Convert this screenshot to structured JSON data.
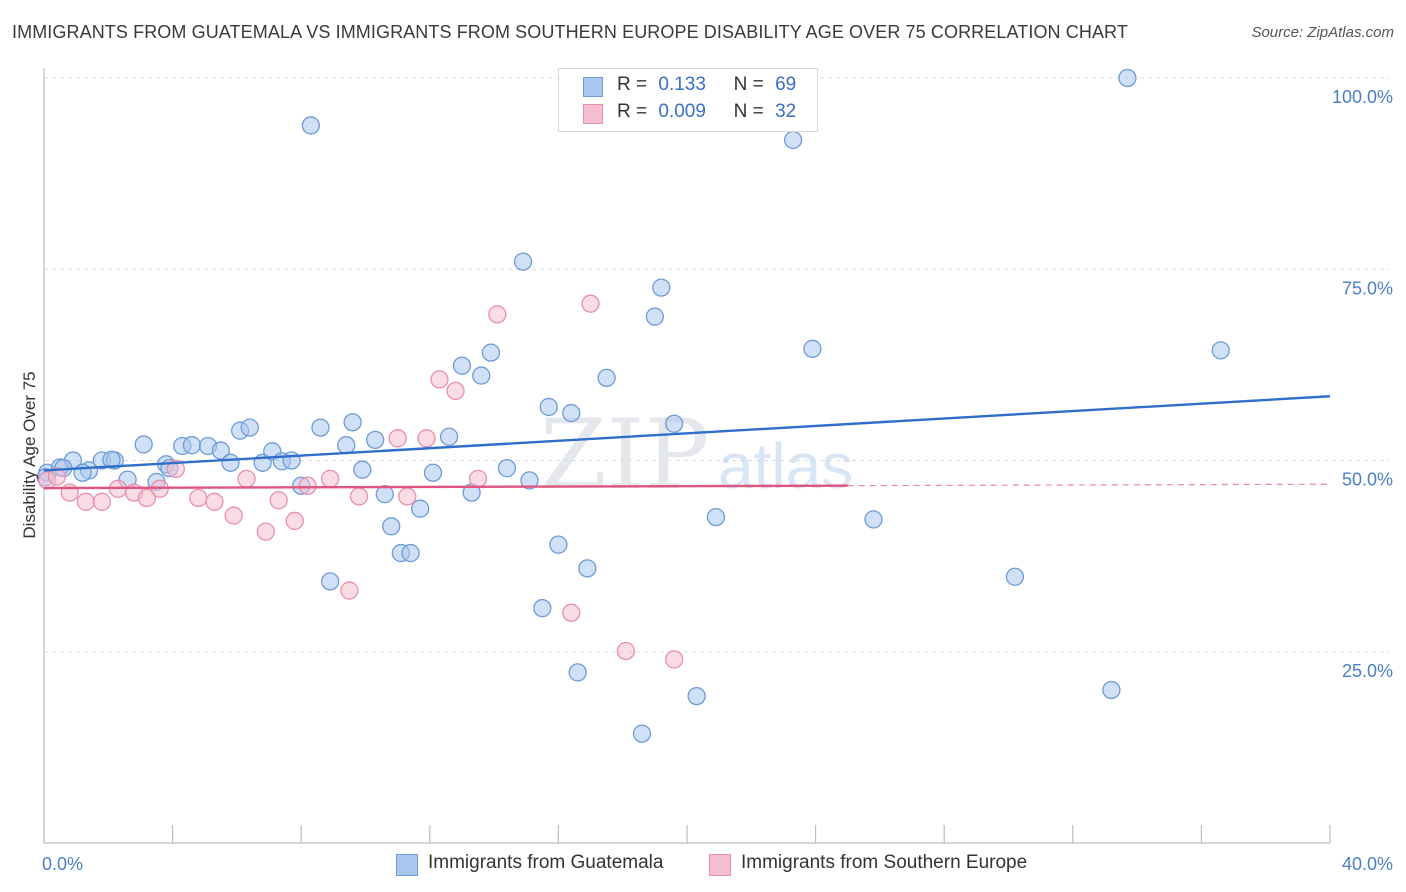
{
  "title": "IMMIGRANTS FROM GUATEMALA VS IMMIGRANTS FROM SOUTHERN EUROPE DISABILITY AGE OVER 75 CORRELATION CHART",
  "source": "Source: ZipAtlas.com",
  "watermark": {
    "zip": "ZIP",
    "atlas": "atlas"
  },
  "colors": {
    "blue_fill": "#a9c6ee",
    "blue_stroke": "#6f9bd6",
    "blue_line": "#2f6fcb",
    "pink_fill": "#f6bfd0",
    "pink_stroke": "#e98fae",
    "pink_line": "#e0557f",
    "grid": "#dddddd",
    "tick_label": "#4a7fc8"
  },
  "legend_top": {
    "rows": [
      {
        "r_label": "R =",
        "r_value": "0.133",
        "n_label": "N =",
        "n_value": "69"
      },
      {
        "r_label": "R =",
        "r_value": "0.009",
        "n_label": "N =",
        "n_value": "32"
      }
    ]
  },
  "legend_bottom": [
    {
      "label": "Immigrants from Guatemala"
    },
    {
      "label": "Immigrants from Southern Europe"
    }
  ],
  "chart_data": {
    "type": "scatter",
    "title": "IMMIGRANTS FROM GUATEMALA VS IMMIGRANTS FROM SOUTHERN EUROPE DISABILITY AGE OVER 75 CORRELATION CHART",
    "xlabel": "",
    "ylabel": "Disability Age Over 75",
    "xlim": [
      0,
      40
    ],
    "ylim": [
      0,
      100
    ],
    "x_tick_labels": [
      {
        "value": 0,
        "label": "0.0%"
      },
      {
        "value": 40,
        "label": "40.0%"
      }
    ],
    "y_tick_labels": [
      {
        "value": 100,
        "label": "100.0%"
      },
      {
        "value": 75,
        "label": "75.0%"
      },
      {
        "value": 50,
        "label": "50.0%"
      },
      {
        "value": 25,
        "label": "25.0%"
      }
    ],
    "grid": true,
    "series": [
      {
        "name": "Immigrants from Guatemala",
        "color": "#a9c6ee",
        "points": [
          [
            0.1,
            48.4
          ],
          [
            0.5,
            49.1
          ],
          [
            0.9,
            50.0
          ],
          [
            1.4,
            48.7
          ],
          [
            1.8,
            50.0
          ],
          [
            0.6,
            49.0
          ],
          [
            1.2,
            48.4
          ],
          [
            2.2,
            50.0
          ],
          [
            2.6,
            47.5
          ],
          [
            3.1,
            52.1
          ],
          [
            3.5,
            47.2
          ],
          [
            3.8,
            49.5
          ],
          [
            4.3,
            51.9
          ],
          [
            4.6,
            52.0
          ],
          [
            5.1,
            51.9
          ],
          [
            5.5,
            51.3
          ],
          [
            5.8,
            49.7
          ],
          [
            6.1,
            53.9
          ],
          [
            6.4,
            54.3
          ],
          [
            6.8,
            49.7
          ],
          [
            7.1,
            51.2
          ],
          [
            7.4,
            49.9
          ],
          [
            7.7,
            50.0
          ],
          [
            8.0,
            46.7
          ],
          [
            8.3,
            93.8
          ],
          [
            8.6,
            54.3
          ],
          [
            8.9,
            34.2
          ],
          [
            9.4,
            52.0
          ],
          [
            9.6,
            55.0
          ],
          [
            9.9,
            48.8
          ],
          [
            10.3,
            52.7
          ],
          [
            10.6,
            45.6
          ],
          [
            10.8,
            41.4
          ],
          [
            11.1,
            37.9
          ],
          [
            11.4,
            37.9
          ],
          [
            11.7,
            43.7
          ],
          [
            12.1,
            48.4
          ],
          [
            12.6,
            53.1
          ],
          [
            13.0,
            62.4
          ],
          [
            13.3,
            45.8
          ],
          [
            13.6,
            61.1
          ],
          [
            13.9,
            64.1
          ],
          [
            14.4,
            49.0
          ],
          [
            14.9,
            76.0
          ],
          [
            15.1,
            47.4
          ],
          [
            15.5,
            30.7
          ],
          [
            15.7,
            57.0
          ],
          [
            16.0,
            39.0
          ],
          [
            16.4,
            56.2
          ],
          [
            16.6,
            22.3
          ],
          [
            16.9,
            35.9
          ],
          [
            17.5,
            60.8
          ],
          [
            18.6,
            14.3
          ],
          [
            19.0,
            68.8
          ],
          [
            19.2,
            72.6
          ],
          [
            19.6,
            54.8
          ],
          [
            20.3,
            19.2
          ],
          [
            20.9,
            42.6
          ],
          [
            21.9,
            100.0
          ],
          [
            23.3,
            91.9
          ],
          [
            23.9,
            64.6
          ],
          [
            25.8,
            42.3
          ],
          [
            30.2,
            34.8
          ],
          [
            33.2,
            20.0
          ],
          [
            33.7,
            100.0
          ],
          [
            36.6,
            64.4
          ],
          [
            0.05,
            47.8
          ],
          [
            2.1,
            50.1
          ],
          [
            3.9,
            49.0
          ]
        ]
      },
      {
        "name": "Immigrants from Southern Europe",
        "color": "#f6bfd0",
        "points": [
          [
            0.1,
            47.4
          ],
          [
            0.4,
            47.9
          ],
          [
            0.8,
            45.8
          ],
          [
            1.3,
            44.6
          ],
          [
            1.8,
            44.6
          ],
          [
            2.3,
            46.3
          ],
          [
            2.8,
            45.8
          ],
          [
            3.2,
            45.1
          ],
          [
            3.6,
            46.3
          ],
          [
            4.1,
            48.9
          ],
          [
            4.8,
            45.1
          ],
          [
            5.3,
            44.6
          ],
          [
            5.9,
            42.8
          ],
          [
            6.3,
            47.6
          ],
          [
            6.9,
            40.7
          ],
          [
            7.3,
            44.8
          ],
          [
            7.8,
            42.1
          ],
          [
            8.2,
            46.7
          ],
          [
            8.9,
            47.6
          ],
          [
            9.5,
            33.0
          ],
          [
            9.8,
            45.3
          ],
          [
            11.0,
            52.9
          ],
          [
            11.3,
            45.3
          ],
          [
            11.9,
            52.9
          ],
          [
            12.3,
            60.6
          ],
          [
            12.8,
            59.1
          ],
          [
            13.5,
            47.6
          ],
          [
            14.1,
            69.1
          ],
          [
            16.4,
            30.1
          ],
          [
            17.0,
            70.5
          ],
          [
            18.1,
            25.1
          ],
          [
            19.6,
            24.0
          ]
        ]
      }
    ],
    "trendlines": [
      {
        "series": "Immigrants from Guatemala",
        "x": [
          0,
          40
        ],
        "y": [
          48.7,
          58.4
        ]
      },
      {
        "series": "Immigrants from Southern Europe",
        "x": [
          0,
          40
        ],
        "y": [
          46.4,
          46.9
        ],
        "solid_until_x": 25
      }
    ]
  }
}
